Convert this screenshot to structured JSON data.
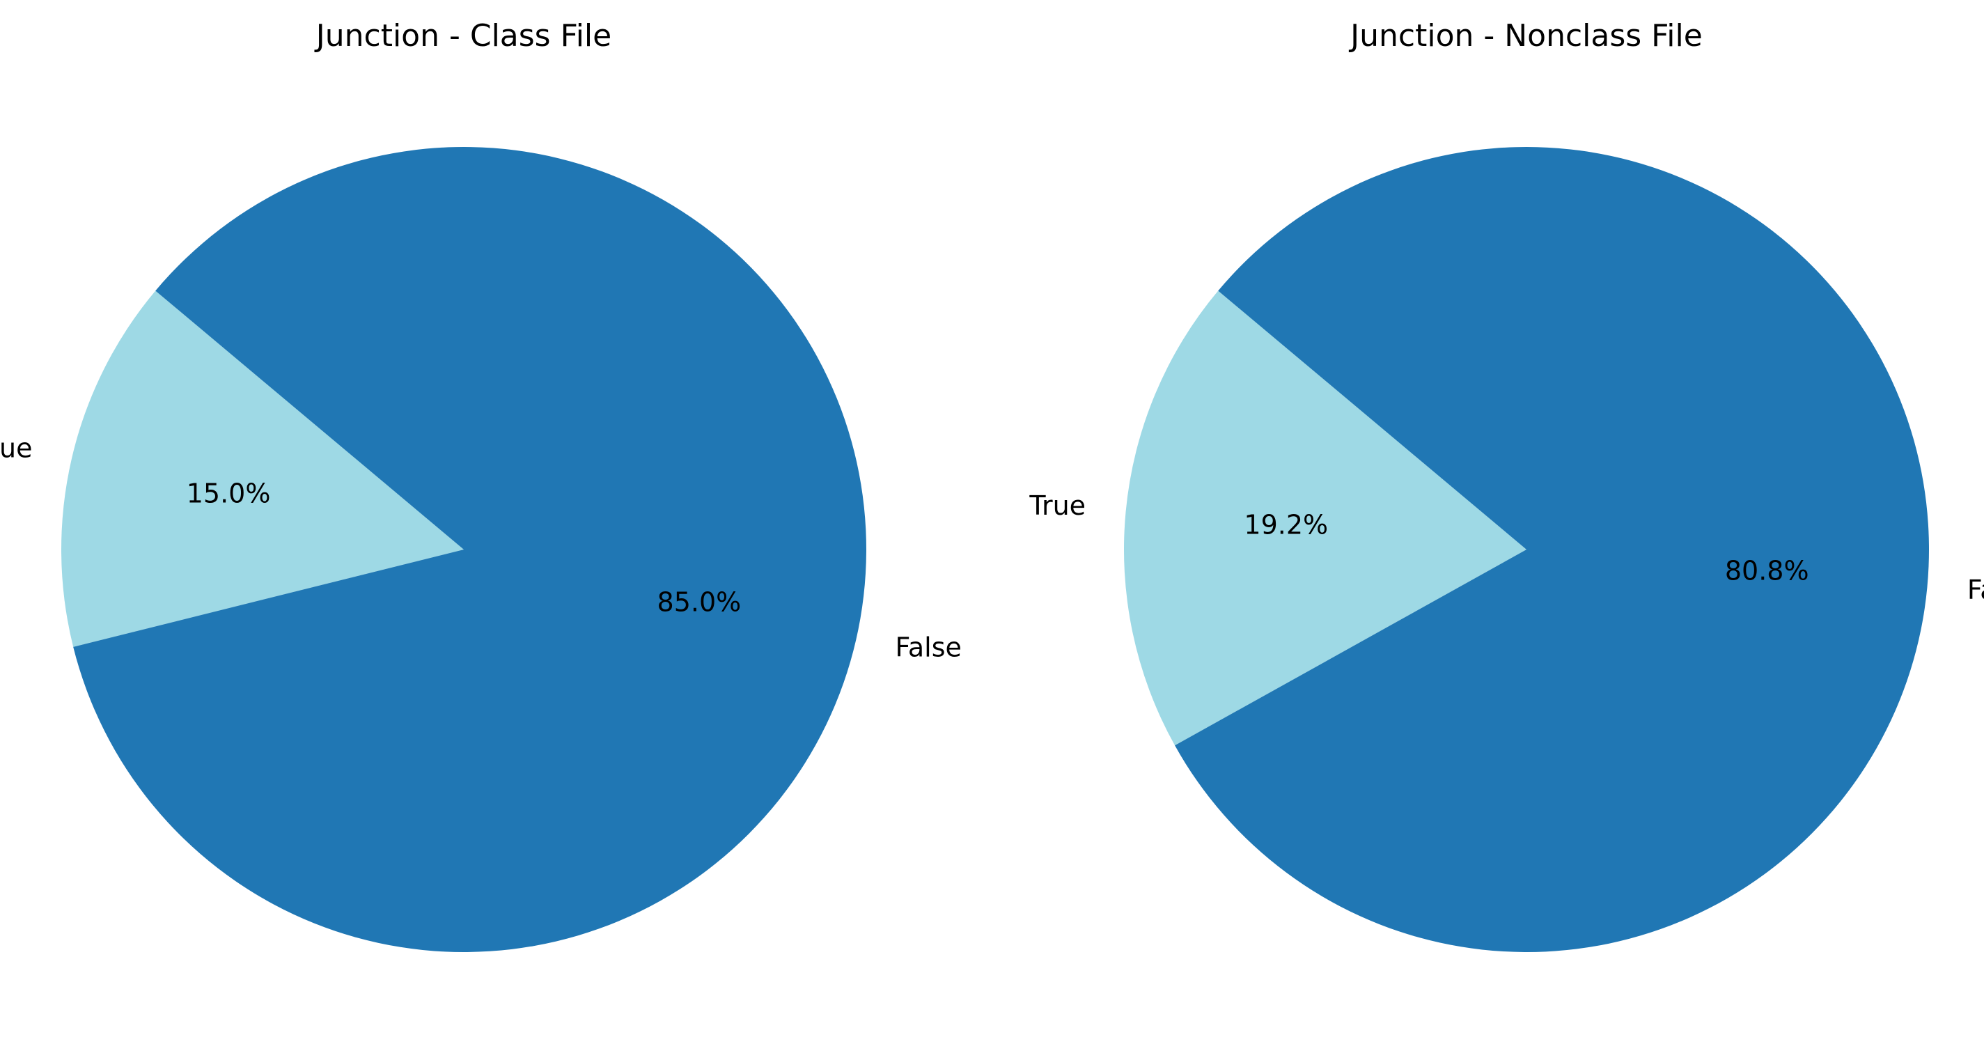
{
  "chart_data": [
    {
      "type": "pie",
      "title": "Junction - Class File",
      "start_angle_deg": 140,
      "slices": [
        {
          "label": "True",
          "value": 15.0,
          "pct_text": "15.0%",
          "color": "#9ed9e5"
        },
        {
          "label": "False",
          "value": 85.0,
          "pct_text": "85.0%",
          "color": "#2077b4"
        }
      ]
    },
    {
      "type": "pie",
      "title": "Junction - Nonclass File",
      "start_angle_deg": 140,
      "slices": [
        {
          "label": "True",
          "value": 19.2,
          "pct_text": "19.2%",
          "color": "#9ed9e5"
        },
        {
          "label": "False",
          "value": 80.8,
          "pct_text": "80.8%",
          "color": "#2077b4"
        }
      ]
    }
  ]
}
